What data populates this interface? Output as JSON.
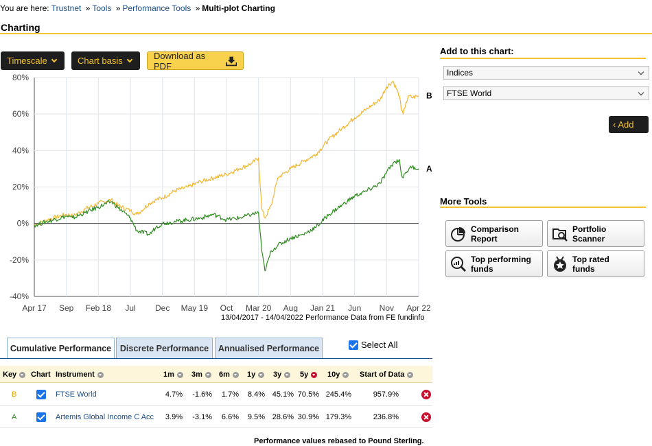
{
  "breadcrumb": {
    "prefix": "You are here:",
    "items": [
      "Trustnet",
      "Tools",
      "Performance Tools"
    ],
    "current": "Multi-plot Charting"
  },
  "page_title": "Charting",
  "toolbar": {
    "timescale_label": "Timescale",
    "chart_basis_label": "Chart basis",
    "download_label": "Download as PDF"
  },
  "chart_data": {
    "type": "line",
    "x_tick_labels": [
      "Apr 17",
      "Sep",
      "Feb 18",
      "Jul",
      "Dec",
      "May 19",
      "Oct",
      "Mar 20",
      "Aug",
      "Jan 21",
      "Jun",
      "Nov",
      "Apr 22"
    ],
    "y_tick_labels": [
      "80%",
      "60%",
      "40%",
      "20%",
      "0%",
      "-20%",
      "-40%"
    ],
    "ylim": [
      -40,
      80
    ],
    "series": [
      {
        "name": "B",
        "color": "#f2b632",
        "x": [
          0,
          2,
          3,
          5,
          6,
          8,
          10,
          12,
          13,
          15,
          16,
          18,
          19,
          20,
          22,
          24,
          26,
          28,
          30,
          32,
          34,
          35,
          35.5,
          36,
          37,
          38,
          40,
          42,
          44,
          46,
          48,
          50,
          52,
          54,
          55,
          56,
          57,
          57.3,
          57.6,
          58,
          58.5,
          59,
          60
        ],
        "y": [
          -1,
          2,
          3,
          5,
          4,
          8,
          11,
          13,
          10,
          7,
          5,
          11,
          13,
          14,
          18,
          20,
          23,
          25,
          27,
          30,
          33,
          36,
          8,
          3,
          10,
          25,
          30,
          34,
          38,
          46,
          52,
          58,
          63,
          68,
          75,
          78,
          70,
          62,
          60,
          66,
          70,
          69,
          70
        ]
      },
      {
        "name": "A",
        "color": "#2e8b1f",
        "x": [
          0,
          2,
          3,
          5,
          6,
          8,
          10,
          12,
          13,
          15,
          16,
          18,
          19,
          20,
          22,
          24,
          26,
          28,
          30,
          32,
          34,
          35,
          35.5,
          36,
          37,
          38,
          40,
          42,
          44,
          46,
          48,
          50,
          52,
          54,
          55,
          56,
          57,
          57.3,
          57.6,
          58,
          58.5,
          59,
          60
        ],
        "y": [
          -1,
          1,
          2,
          4,
          3,
          6,
          9,
          12,
          9,
          3,
          -4,
          -6,
          -2,
          0,
          1,
          2,
          3,
          5,
          2,
          3,
          5,
          6,
          -15,
          -26,
          -15,
          -12,
          -8,
          -6,
          -2,
          5,
          10,
          15,
          18,
          22,
          28,
          33,
          35,
          27,
          25,
          28,
          30,
          31,
          30
        ]
      }
    ],
    "zero_line": true,
    "grid": true,
    "caption": "13/04/2017 - 14/04/2022 Performance Data from FE fundinfo"
  },
  "sidebar": {
    "add_title": "Add to this chart:",
    "select_type": "Indices",
    "select_item": "FTSE World",
    "add_button": "Add",
    "more_tools_title": "More Tools",
    "tools": [
      {
        "label": "Comparison\nReport",
        "icon": "pie-chart-icon"
      },
      {
        "label": "Portfolio\nScanner",
        "icon": "folder-search-icon"
      },
      {
        "label": "Top performing\nfunds",
        "icon": "chart-magnifier-icon"
      },
      {
        "label": "Top rated\nfunds",
        "icon": "star-medal-icon"
      }
    ]
  },
  "tabs": [
    "Cumulative Performance",
    "Discrete Performance",
    "Annualised Performance"
  ],
  "select_all_label": "Select All",
  "table": {
    "headers": {
      "key": "Key",
      "chart": "Chart",
      "instrument": "Instrument",
      "m1": "1m",
      "m3": "3m",
      "m6": "6m",
      "y1": "1y",
      "y3": "3y",
      "y5": "5y",
      "y10": "10y",
      "start": "Start of Data"
    },
    "rows": [
      {
        "key": "B",
        "key_color": "#e6a500",
        "instrument": "FTSE World",
        "m1": "4.7%",
        "m3": "-1.6%",
        "m6": "1.7%",
        "y1": "8.4%",
        "y3": "45.1%",
        "y5": "70.5%",
        "y10": "245.4%",
        "start": "957.9%"
      },
      {
        "key": "A",
        "key_color": "#2e8b1f",
        "instrument": "Artemis Global Income C Acc",
        "m1": "3.9%",
        "m3": "-3.1%",
        "m6": "6.6%",
        "y1": "9.5%",
        "y3": "28.6%",
        "y5": "30.9%",
        "y10": "179.3%",
        "start": "236.8%"
      }
    ]
  },
  "footnote": "Performance values rebased to Pound Sterling."
}
